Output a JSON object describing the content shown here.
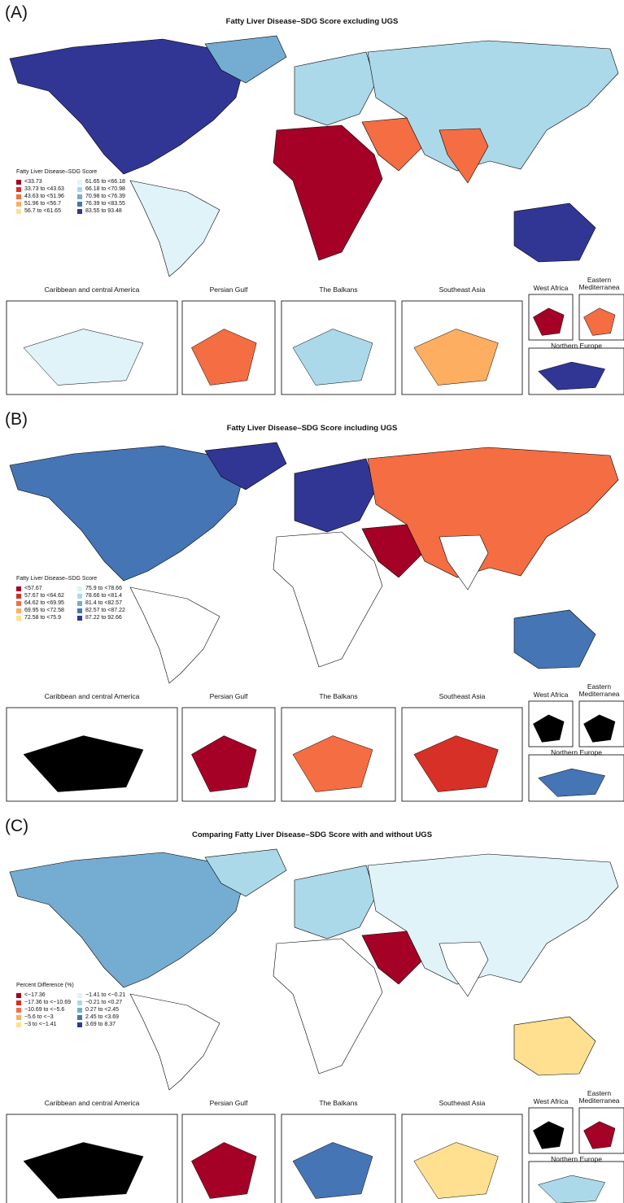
{
  "legend_colors": [
    "#a50026",
    "#d73027",
    "#f46d43",
    "#fdae61",
    "#fee090",
    "#e0f3f8",
    "#abd9e9",
    "#74add1",
    "#4575b4",
    "#313695"
  ],
  "panels": [
    {
      "label": "(A)",
      "title": "Fatty Liver Disease–SDG Score excluding UGS",
      "legend": {
        "title": "Fatty Liver Disease–SDG Score",
        "items": [
          "<33.73",
          "33.73 to <43.63",
          "43.63 to <51.96",
          "51.96 to <56.7",
          "56.7 to <61.65",
          "61.65 to <66.18",
          "66.18 to <70.98",
          "70.98 to <76.39",
          "76.39 to <83.55",
          "83.55 to 93.48"
        ]
      },
      "insets": [
        "Caribbean and central America",
        "Persian Gulf",
        "The Balkans",
        "Southeast Asia",
        "West Africa",
        "Eastern Mediterranea",
        "Northern Europe"
      ]
    },
    {
      "label": "(B)",
      "title": "Fatty Liver Disease–SDG Score including UGS",
      "legend": {
        "title": "Fatty Liver Disease–SDG Score",
        "items": [
          "<57.67",
          "57.67 to <64.62",
          "64.62 to <69.95",
          "69.95 to <72.58",
          "72.58 to <75.9",
          "75.9 to <78.66",
          "78.66 to <81.4",
          "81.4 to <82.57",
          "82.57 to <87.22",
          "87.22 to 92.66"
        ]
      },
      "insets": [
        "Caribbean and central America",
        "Persian Gulf",
        "The Balkans",
        "Southeast Asia",
        "West Africa",
        "Eastern Mediterranea",
        "Northern Europe"
      ]
    },
    {
      "label": "(C)",
      "title": "Comparing Fatty Liver Disease–SDG Score with and without UGS",
      "legend": {
        "title": "Percent Difference (%)",
        "items": [
          "<−17.36",
          "−17.36 to <−10.69",
          "−10.69 to <−5.6",
          "−5.6 to <−3",
          "−3 to <−1.41",
          "−1.41 to <−0.21",
          "−0.21 to <0.27",
          "0.27 to <2.45",
          "2.45 to <3.69",
          "3.69 to 8.37"
        ]
      },
      "insets": [
        "Caribbean and central America",
        "Persian Gulf",
        "The Balkans",
        "Southeast Asia",
        "West Africa",
        "Eastern Mediterranea",
        "Northern Europe"
      ]
    }
  ]
}
